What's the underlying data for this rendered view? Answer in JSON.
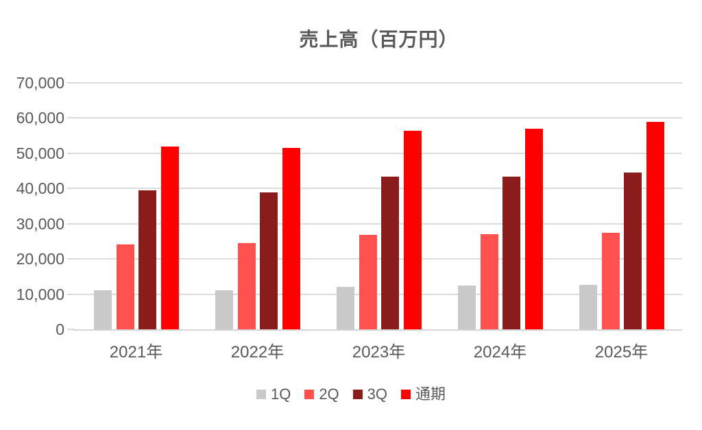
{
  "chart_data": {
    "type": "bar",
    "title": "売上高（百万円）",
    "categories": [
      "2021年",
      "2022年",
      "2023年",
      "2024年",
      "2025年"
    ],
    "series": [
      {
        "name": "1Q",
        "color": "#c9c9c9",
        "values": [
          11000,
          11100,
          12100,
          12400,
          12700
        ]
      },
      {
        "name": "2Q",
        "color": "#ff5050",
        "values": [
          24200,
          24500,
          26800,
          27100,
          27500
        ]
      },
      {
        "name": "3Q",
        "color": "#8a1c1c",
        "values": [
          39400,
          38900,
          43300,
          43300,
          44600
        ]
      },
      {
        "name": "通期",
        "color": "#ff0000",
        "values": [
          51900,
          51500,
          56400,
          56900,
          59000
        ]
      }
    ],
    "ylim": [
      0,
      70000
    ],
    "ytick_step": 10000,
    "ytick_labels": [
      "0",
      "10,000",
      "20,000",
      "30,000",
      "40,000",
      "50,000",
      "60,000",
      "70,000"
    ],
    "grid": true,
    "legend_position": "bottom",
    "xlabel": "",
    "ylabel": ""
  },
  "colors": {
    "background": "#ffffff",
    "text": "#595959",
    "gridline": "#dcdcdc",
    "axis_line": "#d6d6d6",
    "series_1q": "#c9c9c9",
    "series_2q": "#ff5050",
    "series_3q": "#8a1c1c",
    "series_fy": "#ff0000"
  }
}
